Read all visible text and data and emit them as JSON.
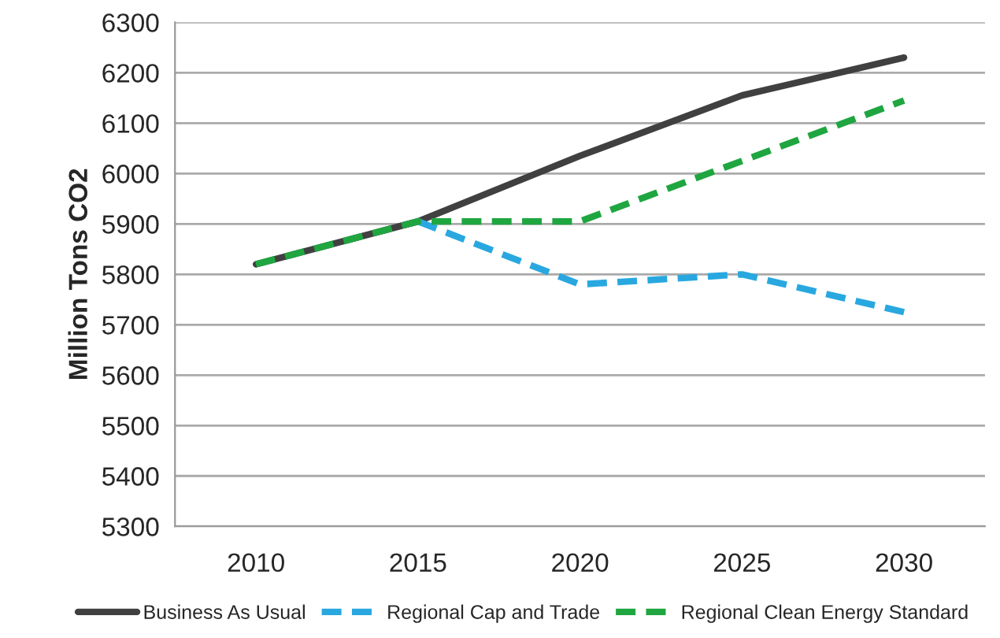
{
  "chart_data": {
    "type": "line",
    "ylabel": "Million Tons CO2",
    "categories": [
      "2010",
      "2015",
      "2020",
      "2025",
      "2030"
    ],
    "series": [
      {
        "name": "Business As Usual",
        "color": "#404040",
        "line_style": "solid",
        "values": [
          5820,
          5905,
          6035,
          6155,
          6230
        ]
      },
      {
        "name": "Regional Cap and Trade",
        "color": "#29a8e0",
        "line_style": "dashed",
        "values": [
          null,
          5905,
          5780,
          5800,
          5725
        ]
      },
      {
        "name": "Regional Clean Energy Standard",
        "color": "#1fa640",
        "line_style": "dashed",
        "values": [
          5820,
          5905,
          5905,
          6025,
          6145
        ]
      }
    ],
    "ylim": [
      5300,
      6300
    ],
    "yticks": [
      5300,
      5400,
      5500,
      5600,
      5700,
      5800,
      5900,
      6000,
      6100,
      6200,
      6300
    ],
    "grid": "y",
    "legend": "bottom",
    "marker": "none"
  }
}
